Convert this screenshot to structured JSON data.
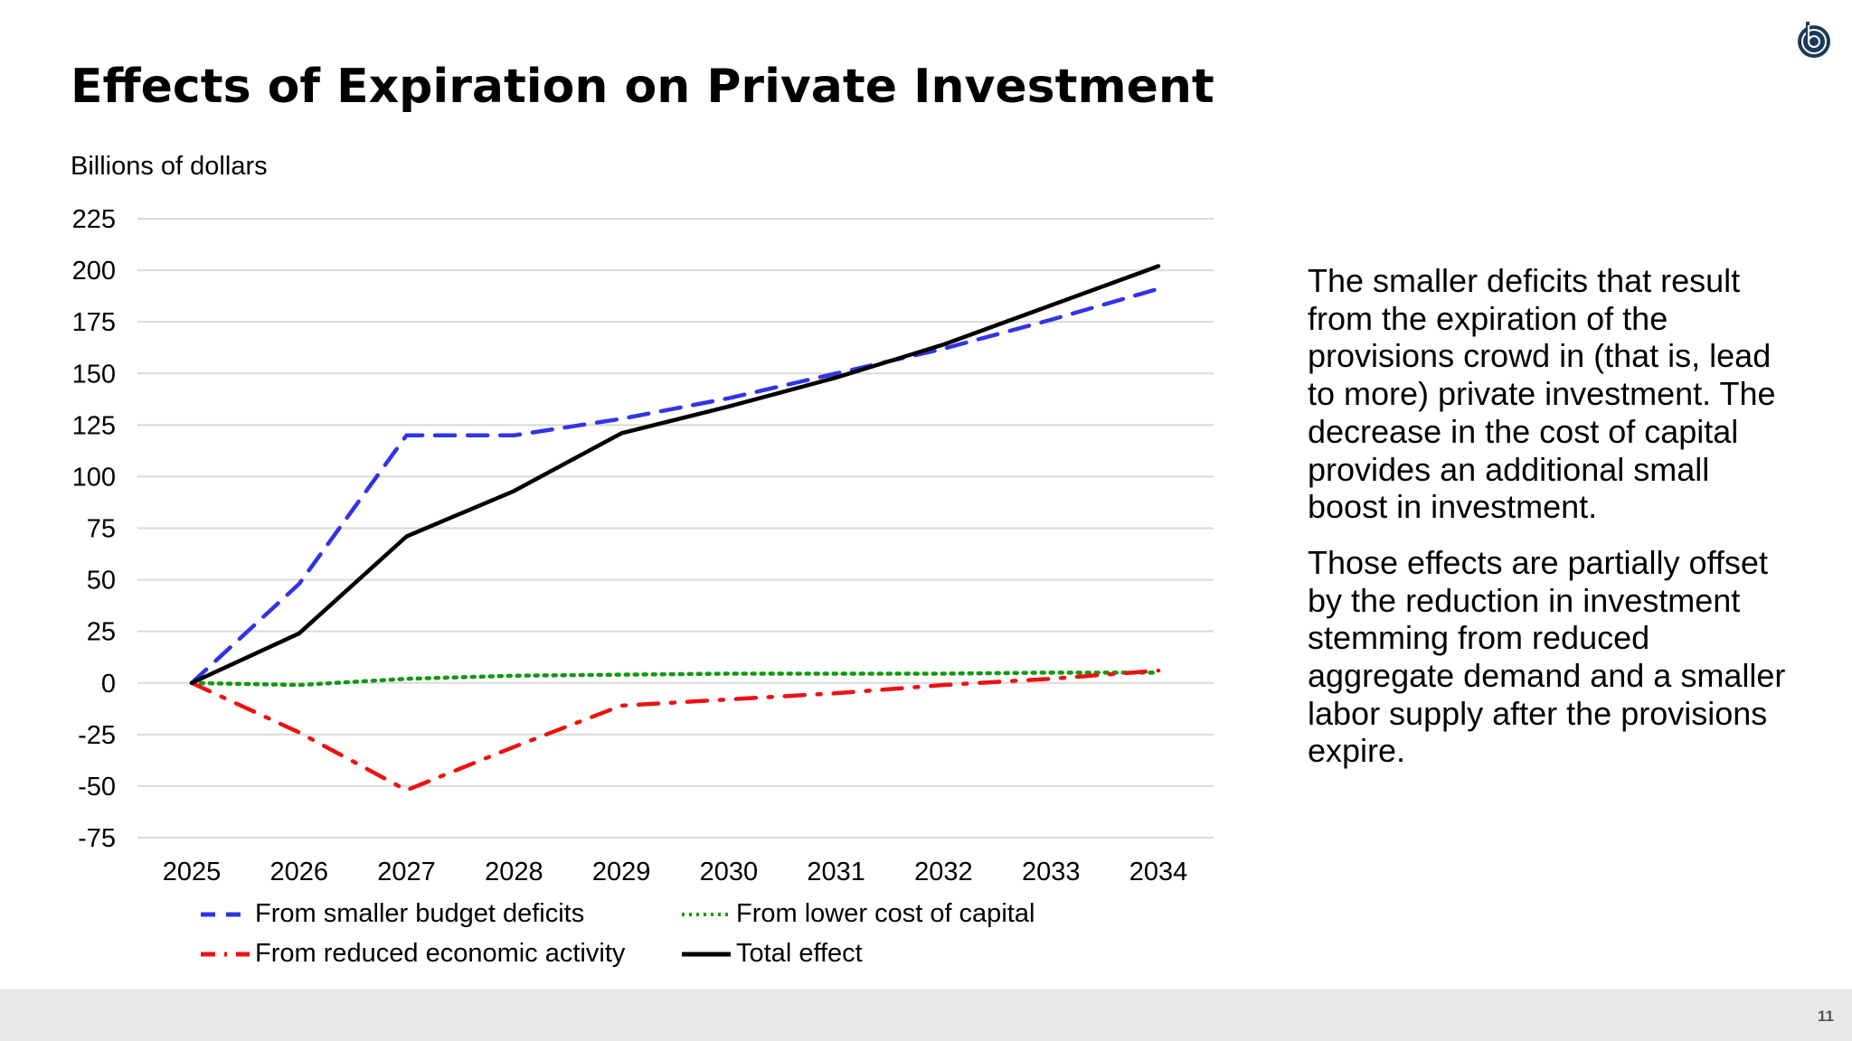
{
  "page": {
    "title": "Effects of Expiration on Private Investment",
    "page_number": "11"
  },
  "side_text": {
    "p1": "The smaller deficits that result from the expiration of the provisions crowd in (that is, lead to more) private investment. The decrease in the cost of capital provides an additional small boost in investment.",
    "p2": "Those effects are partially offset by the reduction in investment stemming from reduced aggregate demand and a smaller labor supply after the provisions expire."
  },
  "chart_data": {
    "type": "line",
    "title": "",
    "ylabel": "Billions of dollars",
    "xlabel": "",
    "ylim": [
      -75,
      225
    ],
    "yticks": [
      225,
      200,
      175,
      150,
      125,
      100,
      75,
      50,
      25,
      0,
      -25,
      -50,
      -75
    ],
    "x": [
      "2025",
      "2026",
      "2027",
      "2028",
      "2029",
      "2030",
      "2031",
      "2032",
      "2033",
      "2034"
    ],
    "grid": true,
    "legend_position": "bottom",
    "series": [
      {
        "name": "From smaller budget deficits",
        "color": "#3333e6",
        "style": "dashed",
        "values": [
          0,
          48,
          120,
          120,
          128,
          138,
          150,
          162,
          176,
          191
        ]
      },
      {
        "name": "From lower cost of capital",
        "color": "#119911",
        "style": "dotted",
        "values": [
          0,
          -1,
          2,
          3.5,
          4,
          4.5,
          4.5,
          4.5,
          5,
          5
        ]
      },
      {
        "name": "From reduced economic activity",
        "color": "#ee1111",
        "style": "dash-dot",
        "values": [
          0,
          -24,
          -52,
          -31,
          -11,
          -8,
          -5,
          -1,
          2,
          6
        ]
      },
      {
        "name": "Total effect",
        "color": "#000000",
        "style": "solid",
        "values": [
          0,
          24,
          71,
          93,
          121,
          134,
          148,
          164,
          183,
          202
        ]
      }
    ]
  },
  "logo": {
    "icon": "bo-logo",
    "color": "#1a3a5c"
  }
}
